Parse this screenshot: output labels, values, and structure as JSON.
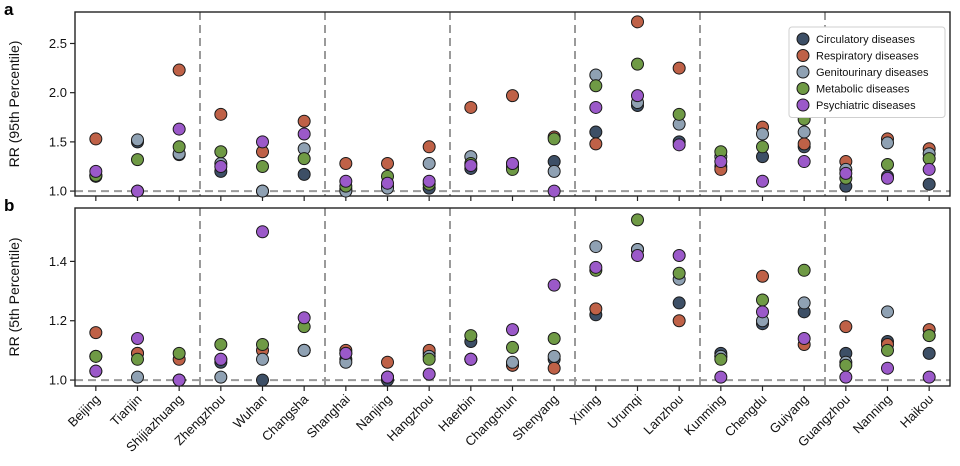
{
  "chart_data": [
    {
      "panel_label": "a",
      "type": "scatter",
      "ylabel": "RR (95th Percentile)",
      "yticks": [
        "1.0",
        "1.5",
        "2.0",
        "2.5"
      ],
      "ylim": [
        0.95,
        2.82
      ],
      "reference_line": 1.0,
      "separators_after": [
        "Shijiazhuang",
        "Changsha",
        "Hangzhou",
        "Shenyang",
        "Lanzhou",
        "Guiyang"
      ],
      "categories": [
        "Beijing",
        "Tianjin",
        "Shijiazhuang",
        "Zhengzhou",
        "Wuhan",
        "Changsha",
        "Shanghai",
        "Nanjing",
        "Hangzhou",
        "Haerbin",
        "Changchun",
        "Shenyang",
        "Xining",
        "Urumqi",
        "Lanzhou",
        "Kunming",
        "Chengdu",
        "Guiyang",
        "Guangzhou",
        "Nanning",
        "Haikou"
      ],
      "legend_position": "top-right",
      "series": [
        {
          "name": "Circulatory diseases",
          "color": "#3d4f66",
          "values": [
            1.15,
            1.5,
            1.37,
            1.2,
            1.0,
            1.17,
            1.02,
            1.05,
            1.03,
            1.23,
            1.25,
            1.3,
            1.6,
            1.87,
            1.5,
            1.25,
            1.35,
            1.45,
            1.05,
            1.15,
            1.07
          ]
        },
        {
          "name": "Respiratory diseases",
          "color": "#bf6147",
          "values": [
            1.53,
            1.0,
            2.23,
            1.78,
            1.4,
            1.71,
            1.28,
            1.28,
            1.45,
            1.85,
            1.97,
            1.55,
            1.48,
            2.72,
            2.25,
            1.22,
            1.65,
            1.48,
            1.3,
            1.53,
            1.43
          ]
        },
        {
          "name": "Genitourinary diseases",
          "color": "#8fa1b3",
          "values": [
            1.16,
            1.52,
            1.38,
            1.28,
            1.0,
            1.43,
            1.0,
            1.03,
            1.28,
            1.35,
            1.28,
            1.2,
            2.18,
            1.9,
            1.68,
            1.35,
            1.58,
            1.6,
            1.22,
            1.49,
            1.38
          ]
        },
        {
          "name": "Metabolic diseases",
          "color": "#6f9a45",
          "values": [
            1.16,
            1.32,
            1.45,
            1.4,
            1.25,
            1.33,
            1.05,
            1.15,
            1.07,
            1.28,
            1.22,
            1.53,
            2.07,
            2.29,
            1.78,
            1.4,
            1.45,
            1.73,
            1.13,
            1.27,
            1.33
          ]
        },
        {
          "name": "Psychiatric diseases",
          "color": "#9b59c9",
          "values": [
            1.2,
            1.0,
            1.63,
            1.25,
            1.5,
            1.58,
            1.1,
            1.08,
            1.1,
            1.26,
            1.28,
            1.0,
            1.85,
            1.97,
            1.47,
            1.3,
            1.1,
            1.3,
            1.18,
            1.13,
            1.22
          ]
        }
      ]
    },
    {
      "panel_label": "b",
      "type": "scatter",
      "ylabel": "RR (5th Percentile)",
      "yticks": [
        "1.0",
        "1.2",
        "1.4"
      ],
      "ylim": [
        0.98,
        1.58
      ],
      "reference_line": 1.0,
      "separators_after": [
        "Shijiazhuang",
        "Changsha",
        "Hangzhou",
        "Shenyang",
        "Lanzhou",
        "Guiyang"
      ],
      "categories": [
        "Beijing",
        "Tianjin",
        "Shijiazhuang",
        "Zhengzhou",
        "Wuhan",
        "Changsha",
        "Shanghai",
        "Nanjing",
        "Hangzhou",
        "Haerbin",
        "Changchun",
        "Shenyang",
        "Xining",
        "Urumqi",
        "Lanzhou",
        "Kunming",
        "Chengdu",
        "Guiyang",
        "Guangzhou",
        "Nanning",
        "Haikou"
      ],
      "series": [
        {
          "name": "Circulatory diseases",
          "color": "#3d4f66",
          "values": [
            1.08,
            1.09,
            1.0,
            1.06,
            1.0,
            1.1,
            1.07,
            1.0,
            1.09,
            1.13,
            1.05,
            1.07,
            1.22,
            1.44,
            1.26,
            1.09,
            1.19,
            1.23,
            1.09,
            1.13,
            1.09
          ]
        },
        {
          "name": "Respiratory diseases",
          "color": "#bf6147",
          "values": [
            1.16,
            1.09,
            1.07,
            1.07,
            1.1,
            1.1,
            1.1,
            1.06,
            1.1,
            1.07,
            1.05,
            1.04,
            1.24,
            1.44,
            1.2,
            1.08,
            1.35,
            1.12,
            1.18,
            1.12,
            1.17
          ]
        },
        {
          "name": "Genitourinary diseases",
          "color": "#8fa1b3",
          "values": [
            1.03,
            1.01,
            1.0,
            1.01,
            1.07,
            1.1,
            1.06,
            1.01,
            1.08,
            1.07,
            1.06,
            1.08,
            1.45,
            1.44,
            1.34,
            1.08,
            1.2,
            1.26,
            1.06,
            1.23,
            1.15
          ]
        },
        {
          "name": "Metabolic diseases",
          "color": "#6f9a45",
          "values": [
            1.08,
            1.07,
            1.09,
            1.12,
            1.12,
            1.18,
            1.09,
            1.01,
            1.07,
            1.15,
            1.11,
            1.14,
            1.37,
            1.54,
            1.36,
            1.07,
            1.27,
            1.37,
            1.05,
            1.1,
            1.15
          ]
        },
        {
          "name": "Psychiatric diseases",
          "color": "#9b59c9",
          "values": [
            1.03,
            1.14,
            1.0,
            1.07,
            1.5,
            1.21,
            1.09,
            1.01,
            1.02,
            1.07,
            1.17,
            1.32,
            1.38,
            1.42,
            1.42,
            1.01,
            1.23,
            1.14,
            1.01,
            1.04,
            1.01
          ]
        }
      ]
    }
  ]
}
